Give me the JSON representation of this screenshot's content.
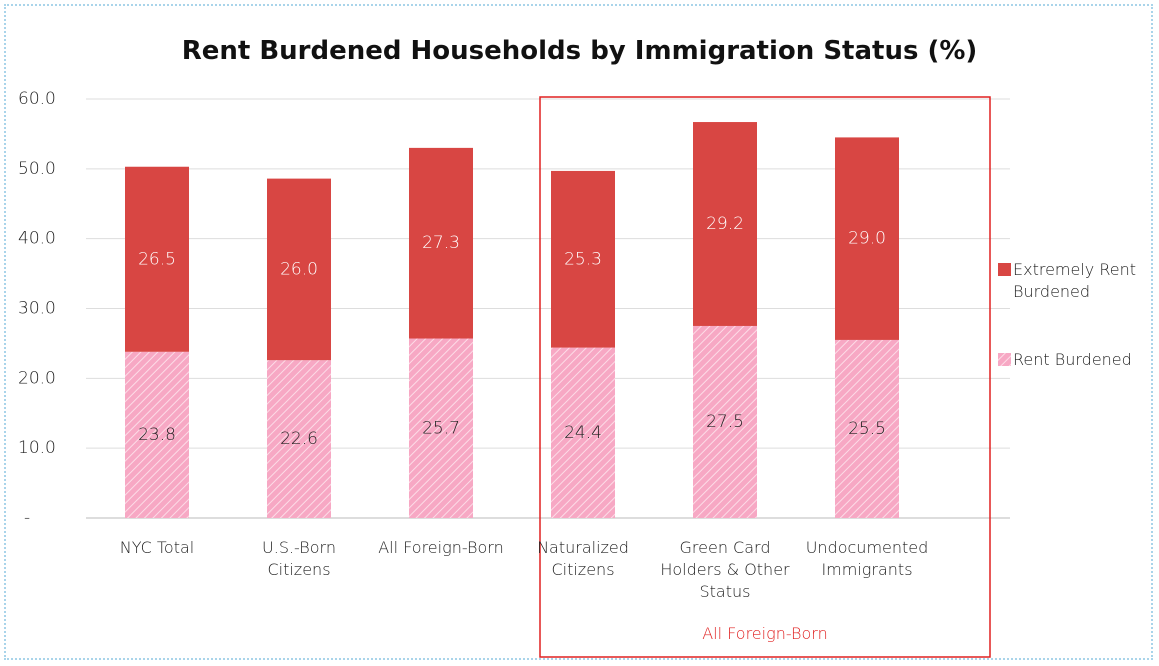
{
  "chart_data": {
    "type": "stacked_bar",
    "title": "Rent Burdened Households by Immigration Status (%)",
    "categories": [
      "NYC Total",
      "U.S.-Born Citizens",
      "All Foreign-Born",
      "Naturalized Citizens",
      "Green Card Holders & Other Status",
      "Undocumented Immigrants"
    ],
    "series": [
      {
        "name": "Rent Burdened",
        "color": "#f7a8c4",
        "hatch": true,
        "values": [
          23.8,
          22.6,
          25.7,
          24.4,
          27.5,
          25.5
        ],
        "value_labels": [
          "23.8",
          "22.6",
          "25.7",
          "24.4",
          "27.5",
          "25.5"
        ]
      },
      {
        "name": "Extremely Rent Burdened",
        "color": "#d84643",
        "hatch": false,
        "values": [
          26.5,
          26.0,
          27.3,
          25.3,
          29.2,
          29.0
        ],
        "value_labels": [
          "26.5",
          "26.0",
          "27.3",
          "25.3",
          "29.2",
          "29.0"
        ]
      }
    ],
    "ylim": [
      0,
      60
    ],
    "yticks": [
      {
        "value": 0,
        "label": "-"
      },
      {
        "value": 10,
        "label": "10.0"
      },
      {
        "value": 20,
        "label": "20.0"
      },
      {
        "value": 30,
        "label": "30.0"
      },
      {
        "value": 40,
        "label": "40.0"
      },
      {
        "value": 50,
        "label": "50.0"
      },
      {
        "value": 60,
        "label": "60.0"
      }
    ],
    "grid": true,
    "legend": "right",
    "annotation": "All Foreign-Born"
  }
}
